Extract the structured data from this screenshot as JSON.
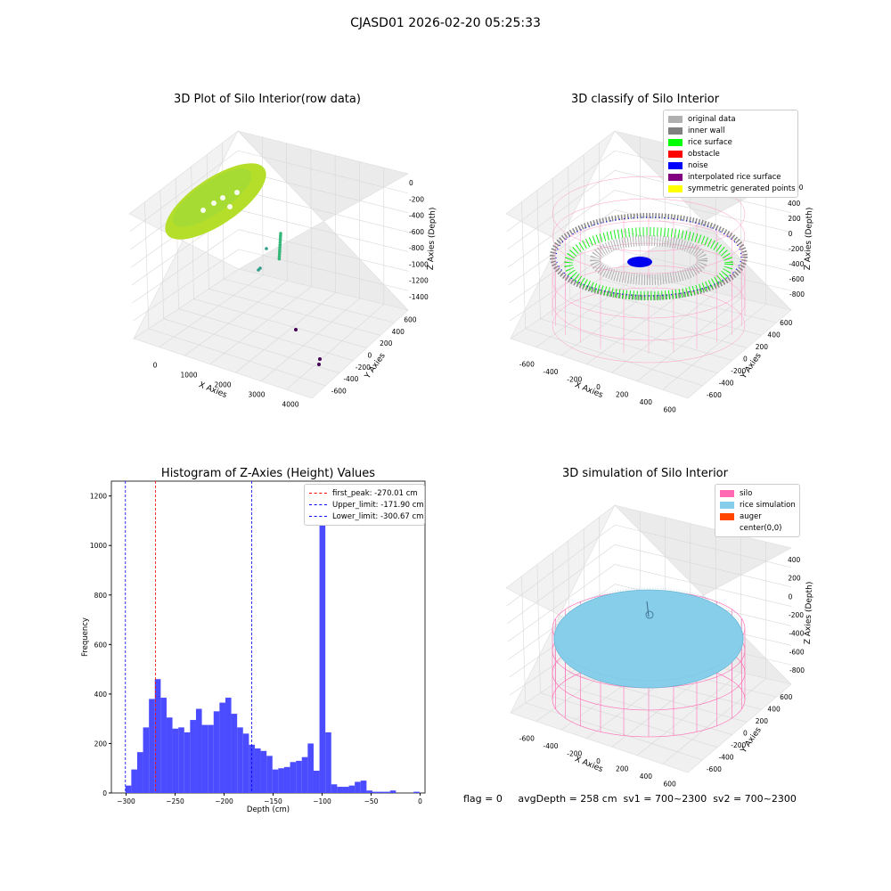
{
  "suptitle": "CJASD01 2026-02-20 05:25:33",
  "footer": {
    "flag": "flag = 0",
    "avg": "avgDepth = 258 cm  sv1 = 700~2300  sv2 = 700~2300"
  },
  "chart_data": [
    {
      "type": "scatter",
      "title": "3D Plot of Silo Interior(row data)",
      "xlabel": "X Axies",
      "ylabel": "Y Axies",
      "zlabel": "Z Axies (Depth)",
      "x_ticks": [
        "0",
        "1000",
        "2000",
        "3000",
        "4000"
      ],
      "y_ticks": [
        "-600",
        "-400",
        "-200",
        "0",
        "200",
        "400",
        "600"
      ],
      "z_ticks": [
        "0",
        "-200",
        "-400",
        "-600",
        "-800",
        "-1000",
        "-1200",
        "-1400"
      ],
      "colors": {
        "surface": "#b5de2b",
        "mid": "#35b779",
        "low": "#440154"
      }
    },
    {
      "type": "scatter",
      "title": "3D classify of Silo Interior",
      "xlabel": "X Axies",
      "ylabel": "Y Axies",
      "zlabel": "Z Axies (Depth)",
      "x_ticks": [
        "-600",
        "-400",
        "-200",
        "0",
        "200",
        "400",
        "600"
      ],
      "y_ticks": [
        "-600",
        "-400",
        "-200",
        "0",
        "200",
        "400",
        "600"
      ],
      "z_ticks": [
        "400",
        "200",
        "0",
        "-200",
        "-400",
        "-600",
        "-800"
      ],
      "legend": [
        {
          "label": "original data",
          "color": "#b0b0b0"
        },
        {
          "label": "inner wall",
          "color": "#808080"
        },
        {
          "label": "rice surface",
          "color": "#00ff00"
        },
        {
          "label": "obstacle",
          "color": "#ff0000"
        },
        {
          "label": "noise",
          "color": "#0000ff"
        },
        {
          "label": "interpolated rice surface",
          "color": "#800080"
        },
        {
          "label": "symmetric generated points",
          "color": "#ffff00"
        }
      ],
      "partial_tick": "00"
    },
    {
      "type": "bar",
      "title": "Histogram of Z-Axies (Height) Values",
      "xlabel": "Depth (cm)",
      "ylabel": "Frequency",
      "xlim": [
        -315,
        5
      ],
      "ylim": [
        0,
        1260
      ],
      "x_ticks": [
        -300,
        -250,
        -200,
        -150,
        -100,
        -50,
        0
      ],
      "y_ticks": [
        0,
        200,
        400,
        600,
        800,
        1000,
        1200
      ],
      "bin_start": -300.67,
      "bin_width": 6.0,
      "values": [
        30,
        95,
        165,
        265,
        380,
        460,
        385,
        305,
        260,
        265,
        245,
        295,
        340,
        275,
        275,
        330,
        365,
        385,
        320,
        265,
        240,
        195,
        180,
        170,
        150,
        95,
        100,
        105,
        125,
        130,
        145,
        200,
        90,
        1200,
        245,
        35,
        25,
        25,
        30,
        45,
        50,
        10,
        5,
        5,
        5,
        10,
        0,
        0,
        0,
        5
      ],
      "bar_color": "#4b4bff",
      "lines": [
        {
          "label": "first_peak: -270.01 cm",
          "value": -270.01,
          "color": "#ff0000"
        },
        {
          "label": "Upper_limit: -171.90 cm",
          "value": -171.9,
          "color": "#0000ff"
        },
        {
          "label": "Lower_limit: -300.67 cm",
          "value": -300.67,
          "color": "#0000ff"
        }
      ]
    },
    {
      "type": "scatter",
      "title": "3D simulation of Silo Interior",
      "xlabel": "X Axies",
      "ylabel": "Y Axies",
      "zlabel": "Z Axies (Depth)",
      "x_ticks": [
        "-600",
        "-400",
        "-200",
        "0",
        "200",
        "400",
        "600"
      ],
      "y_ticks": [
        "-600",
        "-400",
        "-200",
        "0",
        "200",
        "400",
        "600"
      ],
      "z_ticks": [
        "400",
        "200",
        "0",
        "-200",
        "-400",
        "-600",
        "-800"
      ],
      "legend": [
        {
          "label": "silo",
          "color": "#ff69b4"
        },
        {
          "label": "rice simulation",
          "color": "#87ceeb"
        },
        {
          "label": "auger",
          "color": "#ff4500"
        },
        {
          "label": "center(0,0)",
          "color": "#ffffff"
        }
      ]
    }
  ]
}
